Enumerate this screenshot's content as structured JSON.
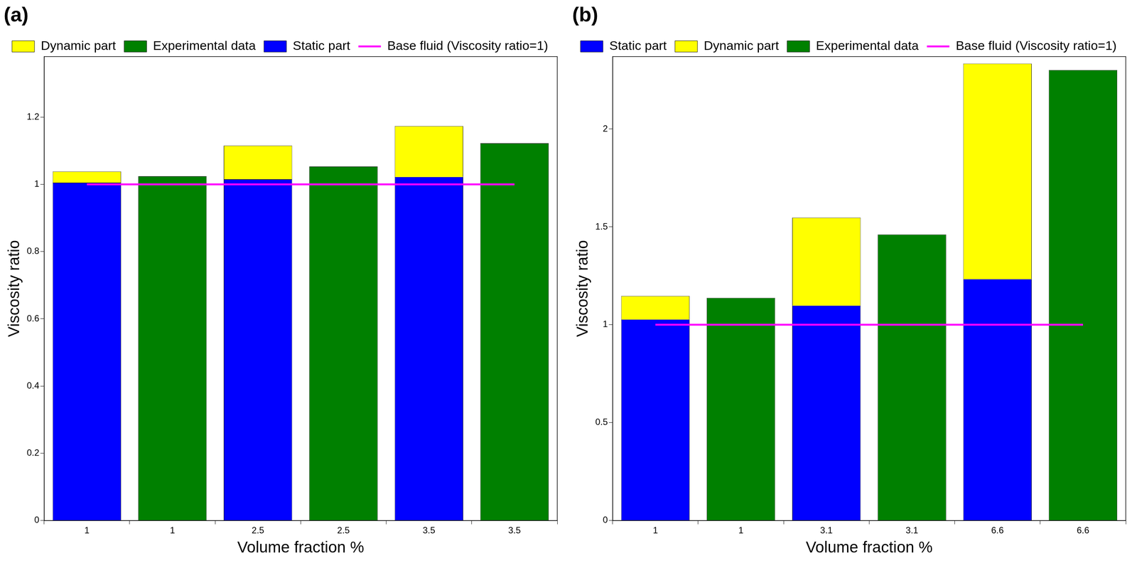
{
  "chart_data": [
    {
      "type": "bar",
      "title": "(a)",
      "x_label": "Volume fraction %",
      "y_label": "Viscosity ratio",
      "categories": [
        "1",
        "1",
        "2.5",
        "2.5",
        "3.5",
        "3.5"
      ],
      "stacked": true,
      "grid": false,
      "legend": "upper left",
      "ylim": [
        0,
        1.38
      ],
      "yticks": [
        0,
        0.2,
        0.4,
        0.6,
        0.8,
        1,
        1.2
      ],
      "series": [
        {
          "name": "Dynamic part",
          "color": "#ffff00",
          "values": [
            0.033,
            null,
            0.1,
            null,
            0.151,
            null
          ]
        },
        {
          "name": "Experimental data",
          "color": "#008000",
          "values": [
            null,
            1.024,
            null,
            1.053,
            null,
            1.122
          ]
        },
        {
          "name": "Static part",
          "color": "#0000ff",
          "values": [
            1.005,
            null,
            1.015,
            null,
            1.022,
            null
          ]
        },
        {
          "name": "Base fluid (Viscosity ratio=1)",
          "color": "#ff00ff",
          "type": "line",
          "values": [
            1,
            1,
            1,
            1,
            1,
            1
          ]
        }
      ]
    },
    {
      "type": "bar",
      "title": "(b)",
      "x_label": "Volume fraction %",
      "y_label": "Viscosity ratio",
      "categories": [
        "1",
        "1",
        "3.1",
        "3.1",
        "6.6",
        "6.6"
      ],
      "stacked": true,
      "grid": false,
      "legend": "upper left",
      "ylim": [
        0,
        2.37
      ],
      "yticks": [
        0,
        0.5,
        1,
        1.5,
        2
      ],
      "series": [
        {
          "name": "Static part",
          "color": "#0000ff",
          "values": [
            1.027,
            null,
            1.098,
            null,
            1.233,
            null
          ]
        },
        {
          "name": "Dynamic part",
          "color": "#ffff00",
          "values": [
            0.12,
            null,
            0.449,
            null,
            1.101,
            null
          ]
        },
        {
          "name": "Experimental data",
          "color": "#008000",
          "values": [
            null,
            1.137,
            null,
            1.461,
            null,
            2.301
          ]
        },
        {
          "name": "Base fluid (Viscosity ratio=1)",
          "color": "#ff00ff",
          "type": "line",
          "values": [
            1,
            1,
            1,
            1,
            1,
            1
          ]
        }
      ]
    }
  ]
}
